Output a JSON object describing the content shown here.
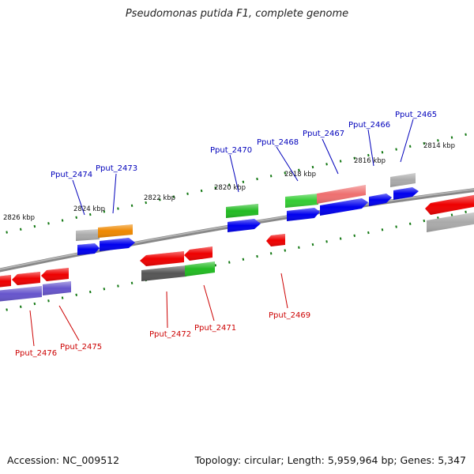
{
  "title": "Pseudomonas putida F1, complete genome",
  "footer": {
    "accession": "Accession: NC_009512",
    "summary": "Topology: circular; Length: 5,959,964 bp; Genes: 5,347"
  },
  "colors": {
    "red": "#ee0000",
    "blue": "#0000dd",
    "green": "#22bb22",
    "orange": "#ee8800",
    "gray": "#999999",
    "darkgray": "#555555",
    "salmon": "#ee7070",
    "purple": "#6655cc",
    "tick": "#117711",
    "backbone": "#888888",
    "top_label": "#0000bb",
    "bottom_label": "#cc0000"
  },
  "kbp_labels": [
    "2826 kbp",
    "2824 kbp",
    "2822 kbp",
    "2820 kbp",
    "2818 kbp",
    "2816 kbp",
    "2814 kbp"
  ],
  "gene_labels": {
    "top": [
      "Pput_2474",
      "Pput_2473",
      "Pput_2470",
      "Pput_2468",
      "Pput_2467",
      "Pput_2466",
      "Pput_2465"
    ],
    "bottom": [
      "Pput_2476",
      "Pput_2475",
      "Pput_2472",
      "Pput_2471",
      "Pput_2469"
    ]
  }
}
